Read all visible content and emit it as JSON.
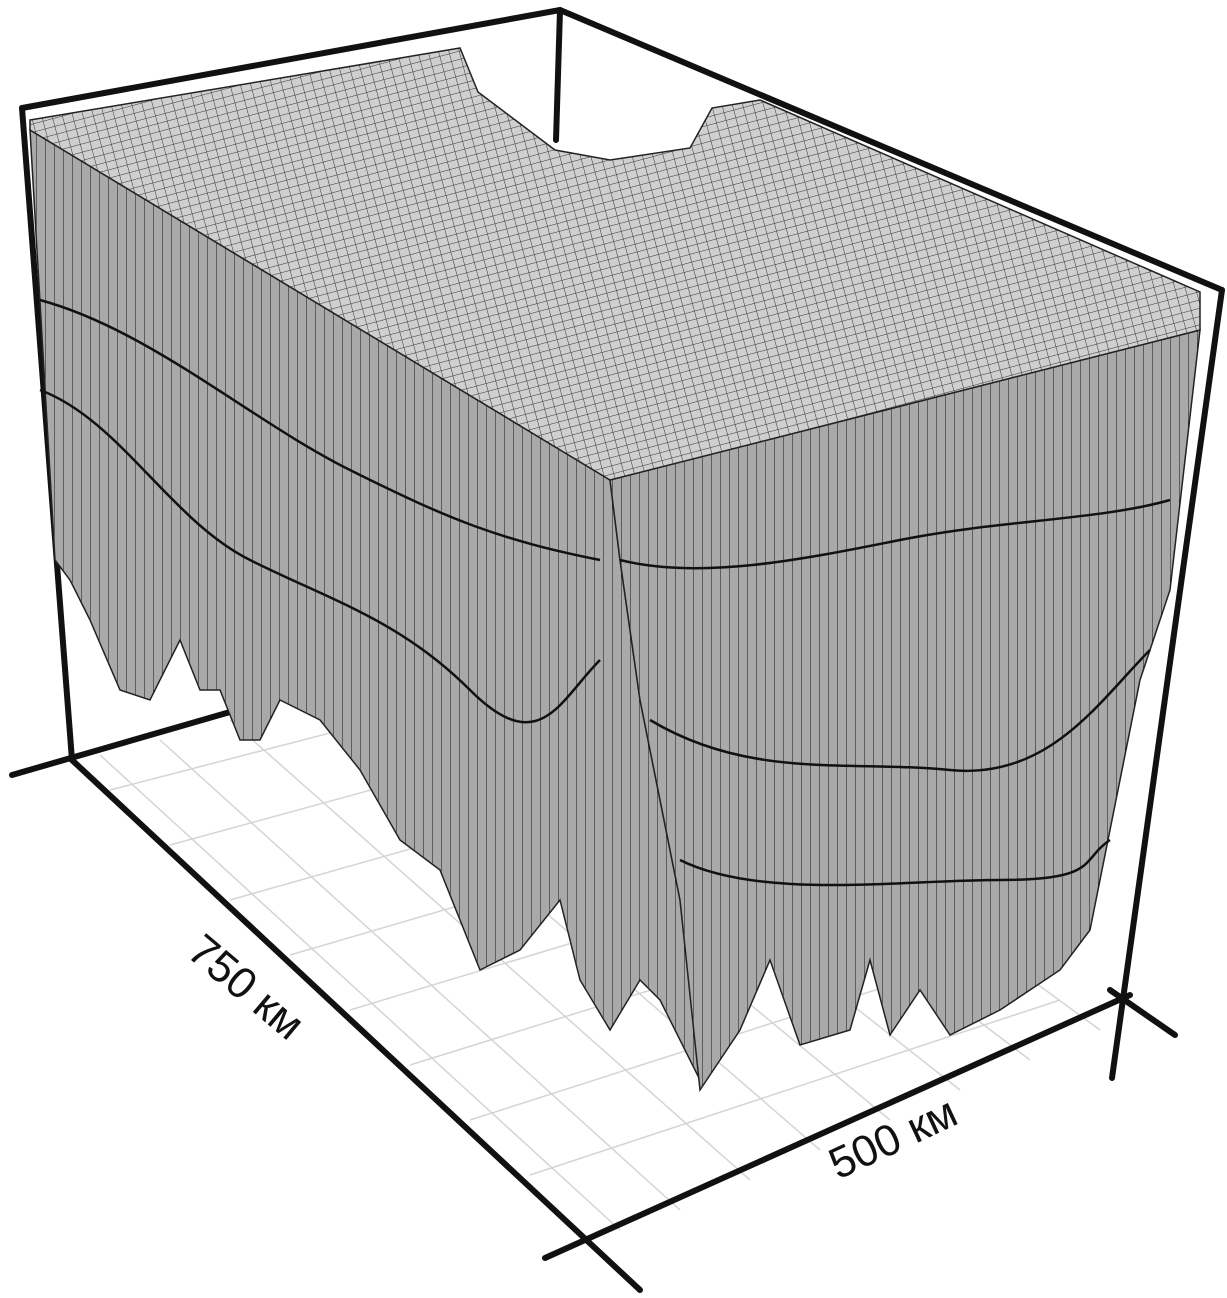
{
  "axes": {
    "left_label": "750 км",
    "right_label": "500 км"
  }
}
